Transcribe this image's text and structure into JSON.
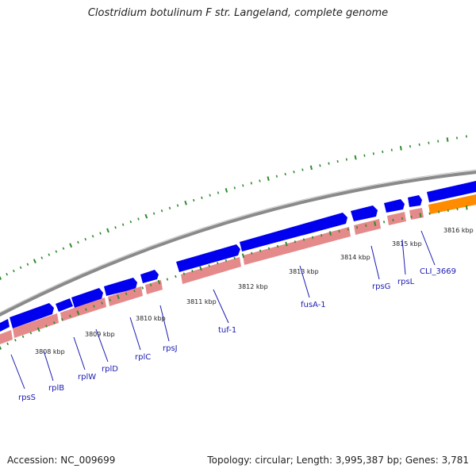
{
  "title": "Clostridium botulinum F str. Langeland, complete genome",
  "footer": {
    "accession": "Accession: NC_009699",
    "summary": "Topology: circular; Length: 3,995,387 bp; Genes: 3,781"
  },
  "colors": {
    "backbone": "#808080",
    "gene_forward": "#0000ee",
    "gene_reverse": "#e58a8a",
    "gene_other": "#ff8c00",
    "tick": "#2e8b2e",
    "label_gene": "#1a1ab3",
    "label_kbp": "#222222"
  },
  "genome_map": {
    "kbp_ticks": [
      {
        "label": "3808 kbp",
        "kbp": 3808
      },
      {
        "label": "3809 kbp",
        "kbp": 3809
      },
      {
        "label": "3810 kbp",
        "kbp": 3810
      },
      {
        "label": "3811 kbp",
        "kbp": 3811
      },
      {
        "label": "3812 kbp",
        "kbp": 3812
      },
      {
        "label": "3813 kbp",
        "kbp": 3813
      },
      {
        "label": "3814 kbp",
        "kbp": 3814
      },
      {
        "label": "3815 kbp",
        "kbp": 3815
      },
      {
        "label": "3816 kbp",
        "kbp": 3816
      }
    ],
    "gene_labels": [
      {
        "label": "rpsS",
        "name": "gene-label-rpsS"
      },
      {
        "label": "rplB",
        "name": "gene-label-rplB"
      },
      {
        "label": "rplW",
        "name": "gene-label-rplW"
      },
      {
        "label": "rplD",
        "name": "gene-label-rplD"
      },
      {
        "label": "rplC",
        "name": "gene-label-rplC"
      },
      {
        "label": "rpsJ",
        "name": "gene-label-rpsJ"
      },
      {
        "label": "tuf-1",
        "name": "gene-label-tuf-1"
      },
      {
        "label": "fusA-1",
        "name": "gene-label-fusA-1"
      },
      {
        "label": "rpsG",
        "name": "gene-label-rpsG"
      },
      {
        "label": "rpsL",
        "name": "gene-label-rpsL"
      },
      {
        "label": "CLI_3669",
        "name": "gene-label-CLI_3669"
      }
    ]
  }
}
